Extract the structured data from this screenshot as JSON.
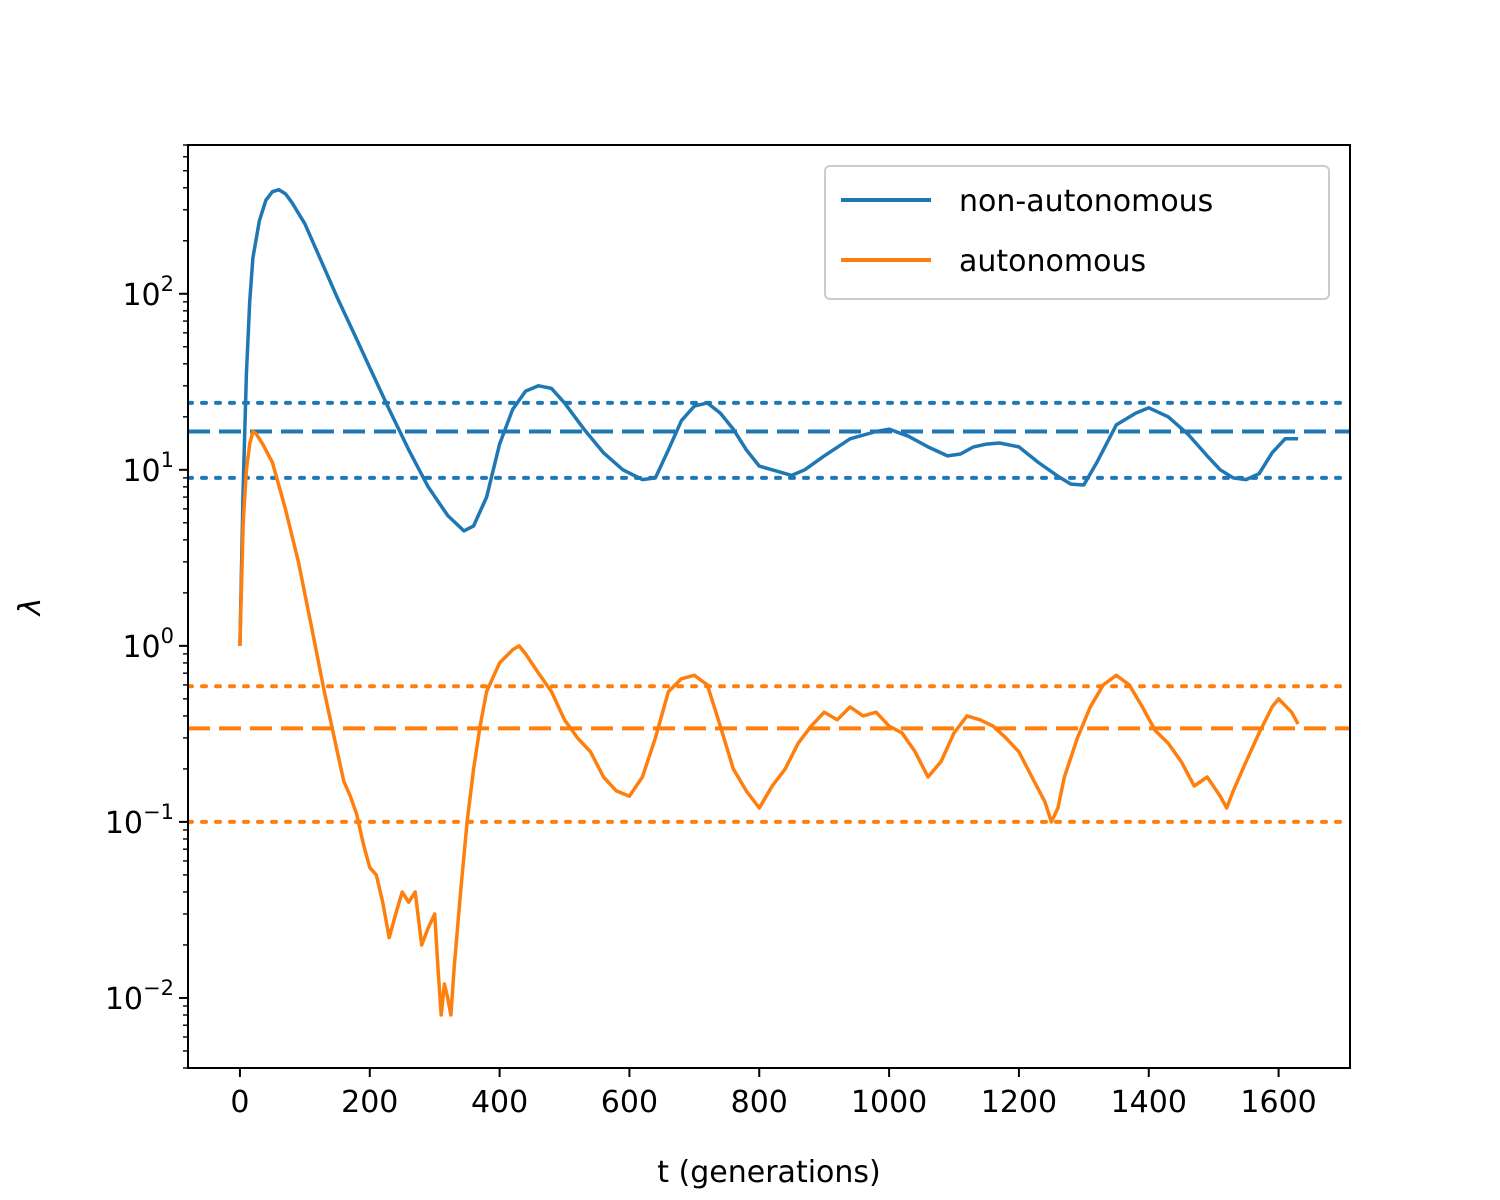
{
  "chart_data": {
    "type": "line",
    "title": "",
    "xlabel": "t (generations)",
    "ylabel": "λ",
    "xlim": [
      -80,
      1710
    ],
    "ylim": [
      0.004,
      700
    ],
    "yscale": "log",
    "x_ticks": [
      0,
      200,
      400,
      600,
      800,
      1000,
      1200,
      1400,
      1600
    ],
    "y_ticks": [
      {
        "value": 0.01,
        "base": "10",
        "exp": "−2"
      },
      {
        "value": 0.1,
        "base": "10",
        "exp": "−1"
      },
      {
        "value": 1,
        "base": "10",
        "exp": "0"
      },
      {
        "value": 10,
        "base": "10",
        "exp": "1"
      },
      {
        "value": 100,
        "base": "10",
        "exp": "2"
      }
    ],
    "grid": false,
    "legend": {
      "placement": "top-right"
    },
    "colors": {
      "non_autonomous": "#1f77b4",
      "autonomous": "#ff7f0e"
    },
    "series": [
      {
        "name": "non-autonomous",
        "color": "#1f77b4",
        "x": [
          0,
          5,
          10,
          15,
          20,
          30,
          40,
          50,
          60,
          70,
          80,
          100,
          120,
          150,
          180,
          200,
          230,
          260,
          290,
          320,
          345,
          360,
          380,
          400,
          420,
          440,
          460,
          480,
          500,
          530,
          560,
          590,
          620,
          640,
          660,
          680,
          700,
          720,
          740,
          760,
          780,
          800,
          820,
          850,
          870,
          900,
          940,
          980,
          1000,
          1030,
          1060,
          1090,
          1110,
          1130,
          1150,
          1170,
          1200,
          1230,
          1260,
          1280,
          1300,
          1320,
          1350,
          1380,
          1400,
          1430,
          1460,
          1490,
          1510,
          1530,
          1550,
          1570,
          1590,
          1610,
          1630
        ],
        "y": [
          1.0,
          8.0,
          35,
          90,
          160,
          260,
          340,
          380,
          390,
          370,
          330,
          250,
          170,
          95,
          55,
          38,
          22,
          13,
          8.0,
          5.5,
          4.5,
          4.8,
          7.0,
          14,
          22,
          28,
          30,
          29,
          24,
          17,
          12.5,
          10,
          8.8,
          9.0,
          13,
          19,
          23,
          24,
          21,
          17,
          13,
          10.5,
          10,
          9.3,
          10,
          12,
          15,
          16.5,
          17,
          15.5,
          13.5,
          12,
          12.3,
          13.5,
          14,
          14.2,
          13.5,
          11,
          9.2,
          8.3,
          8.2,
          11,
          18,
          21,
          22.5,
          20,
          16,
          12,
          10,
          9,
          8.8,
          9.5,
          12.5,
          15,
          15
        ]
      },
      {
        "name": "autonomous",
        "color": "#ff7f0e",
        "x": [
          0,
          5,
          10,
          15,
          20,
          25,
          35,
          50,
          70,
          90,
          110,
          130,
          150,
          160,
          170,
          180,
          190,
          200,
          210,
          220,
          230,
          240,
          250,
          260,
          270,
          280,
          290,
          300,
          305,
          310,
          315,
          320,
          325,
          330,
          340,
          350,
          360,
          370,
          380,
          400,
          420,
          430,
          440,
          460,
          480,
          500,
          520,
          540,
          560,
          580,
          600,
          620,
          640,
          660,
          680,
          700,
          720,
          740,
          760,
          780,
          800,
          820,
          840,
          860,
          880,
          900,
          920,
          940,
          960,
          980,
          1000,
          1020,
          1040,
          1060,
          1080,
          1100,
          1120,
          1140,
          1160,
          1180,
          1200,
          1220,
          1240,
          1250,
          1260,
          1270,
          1290,
          1310,
          1330,
          1350,
          1370,
          1390,
          1410,
          1430,
          1450,
          1470,
          1490,
          1510,
          1520,
          1530,
          1550,
          1570,
          1590,
          1600,
          1620,
          1630
        ],
        "y": [
          1.0,
          5.0,
          10,
          14,
          16.5,
          16,
          14,
          11,
          6.0,
          3.0,
          1.3,
          0.55,
          0.25,
          0.17,
          0.14,
          0.11,
          0.075,
          0.055,
          0.05,
          0.035,
          0.022,
          0.03,
          0.04,
          0.035,
          0.04,
          0.02,
          0.025,
          0.03,
          0.015,
          0.008,
          0.012,
          0.01,
          0.008,
          0.015,
          0.04,
          0.1,
          0.2,
          0.35,
          0.55,
          0.8,
          0.95,
          1.0,
          0.9,
          0.7,
          0.55,
          0.38,
          0.3,
          0.25,
          0.18,
          0.15,
          0.14,
          0.18,
          0.3,
          0.55,
          0.65,
          0.68,
          0.6,
          0.35,
          0.2,
          0.15,
          0.12,
          0.16,
          0.2,
          0.28,
          0.35,
          0.42,
          0.38,
          0.45,
          0.4,
          0.42,
          0.35,
          0.32,
          0.25,
          0.18,
          0.22,
          0.32,
          0.4,
          0.38,
          0.35,
          0.3,
          0.25,
          0.18,
          0.13,
          0.1,
          0.12,
          0.18,
          0.3,
          0.45,
          0.6,
          0.68,
          0.6,
          0.45,
          0.33,
          0.28,
          0.22,
          0.16,
          0.18,
          0.14,
          0.12,
          0.15,
          0.22,
          0.32,
          0.45,
          0.5,
          0.42,
          0.36
        ]
      }
    ],
    "reference_lines": [
      {
        "series": "non-autonomous",
        "style": "dashed",
        "y": 16.5
      },
      {
        "series": "non-autonomous",
        "style": "dotted",
        "y": 24
      },
      {
        "series": "non-autonomous",
        "style": "dotted",
        "y": 9.0
      },
      {
        "series": "autonomous",
        "style": "dashed",
        "y": 0.34
      },
      {
        "series": "autonomous",
        "style": "dotted",
        "y": 0.59
      },
      {
        "series": "autonomous",
        "style": "dotted",
        "y": 0.1
      }
    ]
  }
}
